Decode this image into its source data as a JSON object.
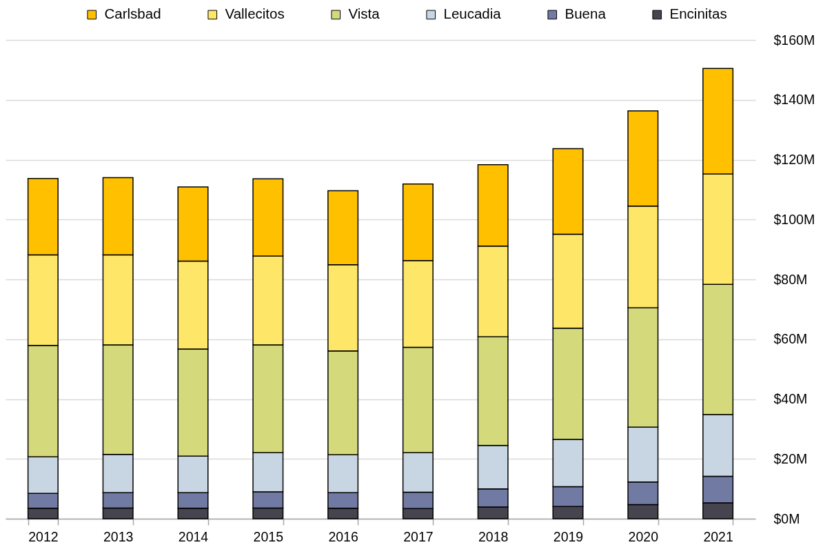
{
  "chart_data": {
    "type": "bar",
    "stacked": true,
    "categories": [
      "2012",
      "2013",
      "2014",
      "2015",
      "2016",
      "2017",
      "2018",
      "2019",
      "2020",
      "2021"
    ],
    "series": [
      {
        "name": "Encinitas",
        "color": "#46454f",
        "values": [
          3.5,
          3.6,
          3.5,
          3.6,
          3.5,
          3.4,
          3.9,
          4.1,
          4.7,
          5.3
        ]
      },
      {
        "name": "Buena",
        "color": "#717aa2",
        "values": [
          5.0,
          5.1,
          5.2,
          5.4,
          5.2,
          5.5,
          6.1,
          6.6,
          7.6,
          8.9
        ]
      },
      {
        "name": "Leucadia",
        "color": "#c7d6e2",
        "values": [
          12.2,
          12.8,
          12.2,
          13.1,
          12.7,
          13.2,
          14.5,
          15.8,
          18.3,
          20.6
        ]
      },
      {
        "name": "Vista",
        "color": "#d4da7c",
        "values": [
          37.2,
          36.6,
          35.8,
          36.0,
          34.7,
          35.2,
          36.3,
          37.2,
          39.9,
          43.5
        ]
      },
      {
        "name": "Vallecitos",
        "color": "#fee768",
        "values": [
          30.3,
          30.1,
          29.4,
          29.7,
          28.8,
          29.0,
          30.3,
          31.4,
          34.0,
          36.9
        ]
      },
      {
        "name": "Carlsbad",
        "color": "#ffc000",
        "values": [
          25.5,
          25.8,
          24.8,
          25.8,
          24.7,
          25.6,
          27.2,
          28.6,
          31.8,
          35.3
        ]
      }
    ],
    "ylim": [
      0,
      160
    ],
    "yticks": [
      {
        "value": 0,
        "label": "$0M"
      },
      {
        "value": 20,
        "label": "$20M"
      },
      {
        "value": 40,
        "label": "$40M"
      },
      {
        "value": 60,
        "label": "$60M"
      },
      {
        "value": 80,
        "label": "$80M"
      },
      {
        "value": 100,
        "label": "$100M"
      },
      {
        "value": 120,
        "label": "$120M"
      },
      {
        "value": 140,
        "label": "$140M"
      },
      {
        "value": 160,
        "label": "$160M"
      }
    ],
    "grid": "y",
    "legend": "top"
  }
}
